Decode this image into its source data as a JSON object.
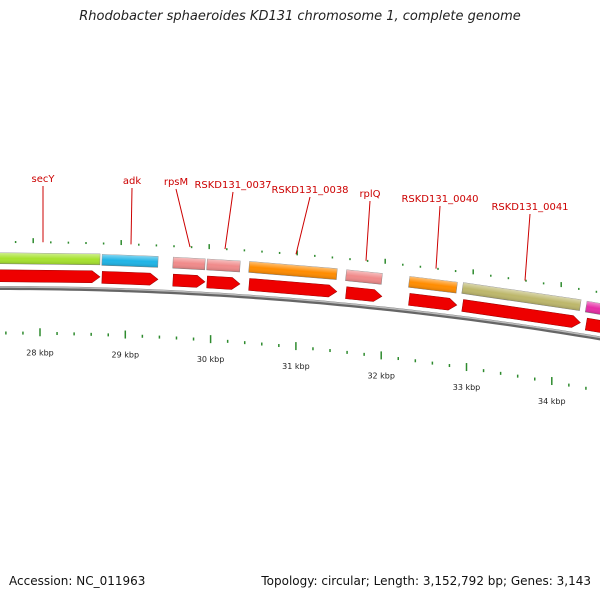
{
  "title": "Rhodobacter sphaeroides KD131 chromosome 1, complete genome",
  "footer": {
    "accession": "Accession: NC_011963",
    "summary": "Topology: circular; Length: 3,152,792 bp; Genes: 3,143"
  },
  "colors": {
    "label": "#cc0000",
    "strand": "#ee0000",
    "tick": "#2e8b2e",
    "backbone": "#888888"
  },
  "scale_labels": [
    "28 kbp",
    "29 kbp",
    "30 kbp",
    "31 kbp",
    "32 kbp",
    "33 kbp",
    "34 kbp"
  ],
  "genes": [
    {
      "name": "secY",
      "color": "#a6e22e",
      "labeled": true
    },
    {
      "name": "adk",
      "color": "#1eb4e6",
      "labeled": true
    },
    {
      "name": "rpsM",
      "color": "#f08a8a",
      "labeled": true
    },
    {
      "name": "RSKD131_0037",
      "color": "#f08a8a",
      "labeled": true
    },
    {
      "name": "RSKD131_0038",
      "color": "#ff8c00",
      "labeled": true
    },
    {
      "name": "rplQ",
      "color": "#f08a8a",
      "labeled": true
    },
    {
      "name": "RSKD131_0040",
      "color": "#ff8c00",
      "labeled": true
    },
    {
      "name": "RSKD131_0041",
      "color": "#bdb76b",
      "labeled": true
    },
    {
      "name": "",
      "color": "#e62ea6",
      "labeled": false
    }
  ]
}
